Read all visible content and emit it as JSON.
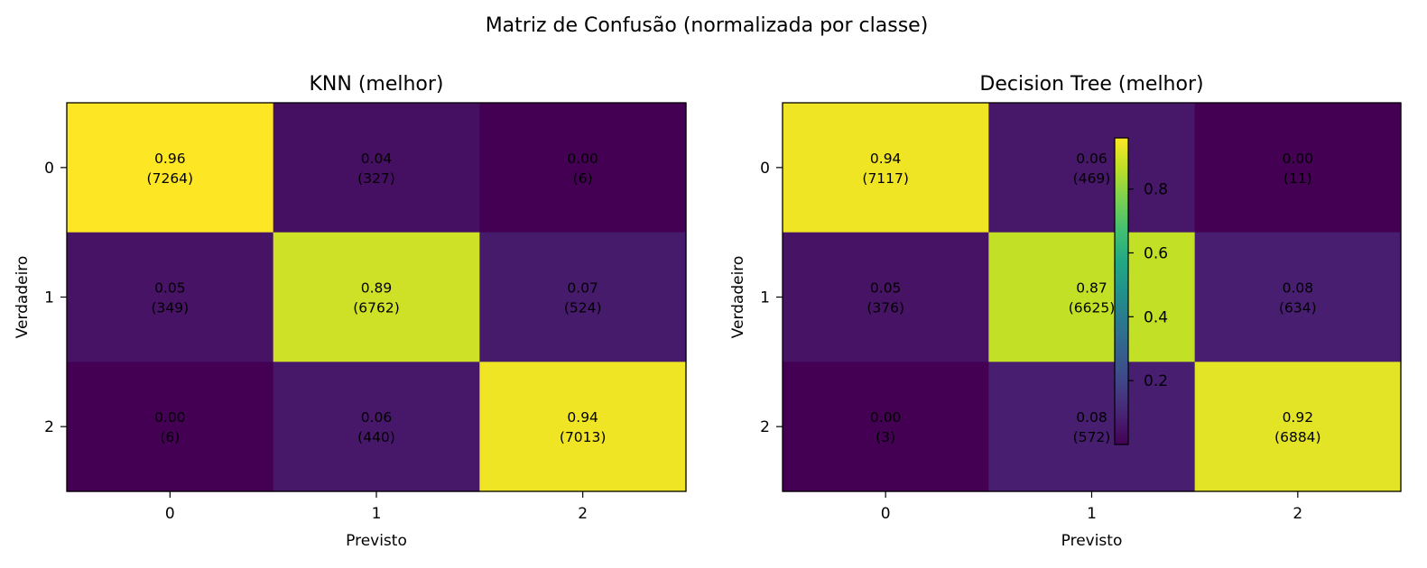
{
  "suptitle": "Matriz de Confusão (normalizada por classe)",
  "chart_data": [
    {
      "type": "heatmap",
      "title": "KNN (melhor)",
      "xlabel": "Previsto",
      "ylabel": "Verdadeiro",
      "x_ticks": [
        "0",
        "1",
        "2"
      ],
      "y_ticks": [
        "0",
        "1",
        "2"
      ],
      "normalized": [
        [
          0.96,
          0.04,
          0.0
        ],
        [
          0.05,
          0.89,
          0.07
        ],
        [
          0.0,
          0.06,
          0.94
        ]
      ],
      "counts": [
        [
          7264,
          327,
          6
        ],
        [
          349,
          6762,
          524
        ],
        [
          6,
          440,
          7013
        ]
      ],
      "cell_labels": [
        [
          "0.96",
          "0.04",
          "0.00"
        ],
        [
          "0.05",
          "0.89",
          "0.07"
        ],
        [
          "0.00",
          "0.06",
          "0.94"
        ]
      ],
      "count_labels": [
        [
          "(7264)",
          "(327)",
          "(6)"
        ],
        [
          "(349)",
          "(6762)",
          "(524)"
        ],
        [
          "(6)",
          "(440)",
          "(7013)"
        ]
      ],
      "colormap": "viridis"
    },
    {
      "type": "heatmap",
      "title": "Decision Tree (melhor)",
      "xlabel": "Previsto",
      "ylabel": "Verdadeiro",
      "x_ticks": [
        "0",
        "1",
        "2"
      ],
      "y_ticks": [
        "0",
        "1",
        "2"
      ],
      "normalized": [
        [
          0.94,
          0.06,
          0.0
        ],
        [
          0.05,
          0.87,
          0.08
        ],
        [
          0.0,
          0.08,
          0.92
        ]
      ],
      "counts": [
        [
          7117,
          469,
          11
        ],
        [
          376,
          6625,
          634
        ],
        [
          3,
          572,
          6884
        ]
      ],
      "cell_labels": [
        [
          "0.94",
          "0.06",
          "0.00"
        ],
        [
          "0.05",
          "0.87",
          "0.08"
        ],
        [
          "0.00",
          "0.08",
          "0.92"
        ]
      ],
      "count_labels": [
        [
          "(7117)",
          "(469)",
          "(11)"
        ],
        [
          "(376)",
          "(6625)",
          "(634)"
        ],
        [
          "(3)",
          "(572)",
          "(6884)"
        ]
      ],
      "colormap": "viridis"
    }
  ],
  "colorbar": {
    "ticks": [
      0.2,
      0.4,
      0.6,
      0.8
    ],
    "tick_labels": [
      "0.2",
      "0.4",
      "0.6",
      "0.8"
    ],
    "range": [
      0.0,
      0.96
    ],
    "colormap": "viridis"
  }
}
